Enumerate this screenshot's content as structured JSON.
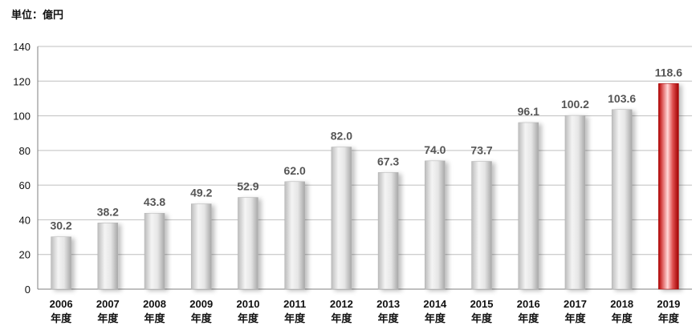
{
  "unit_label": "単位：億円",
  "colors": {
    "bar": "#d9d9d9",
    "highlight": "#c00000",
    "highlight_label": "#e00000",
    "label": "#555555",
    "grid": "#bfbfbf"
  },
  "chart_data": {
    "type": "bar",
    "title": "",
    "xlabel": "",
    "ylabel": "",
    "ylim": [
      0,
      140
    ],
    "yticks": [
      0,
      20,
      40,
      60,
      80,
      100,
      120,
      140
    ],
    "grid": true,
    "categories": [
      "2006\n年度",
      "2007\n年度",
      "2008\n年度",
      "2009\n年度",
      "2010\n年度",
      "2011\n年度",
      "2012\n年度",
      "2013\n年度",
      "2014\n年度",
      "2015\n年度",
      "2016\n年度",
      "2017\n年度",
      "2018\n年度",
      "2019\n年度"
    ],
    "values": [
      30.2,
      38.2,
      43.8,
      49.2,
      52.9,
      62.0,
      82.0,
      67.3,
      74.0,
      73.7,
      96.1,
      100.2,
      103.6,
      118.6
    ],
    "value_labels": [
      "30.2",
      "38.2",
      "43.8",
      "49.2",
      "52.9",
      "62.0",
      "82.0",
      "67.3",
      "74.0",
      "73.7",
      "96.1",
      "100.2",
      "103.6",
      "118.6"
    ],
    "highlight_index": 13
  }
}
